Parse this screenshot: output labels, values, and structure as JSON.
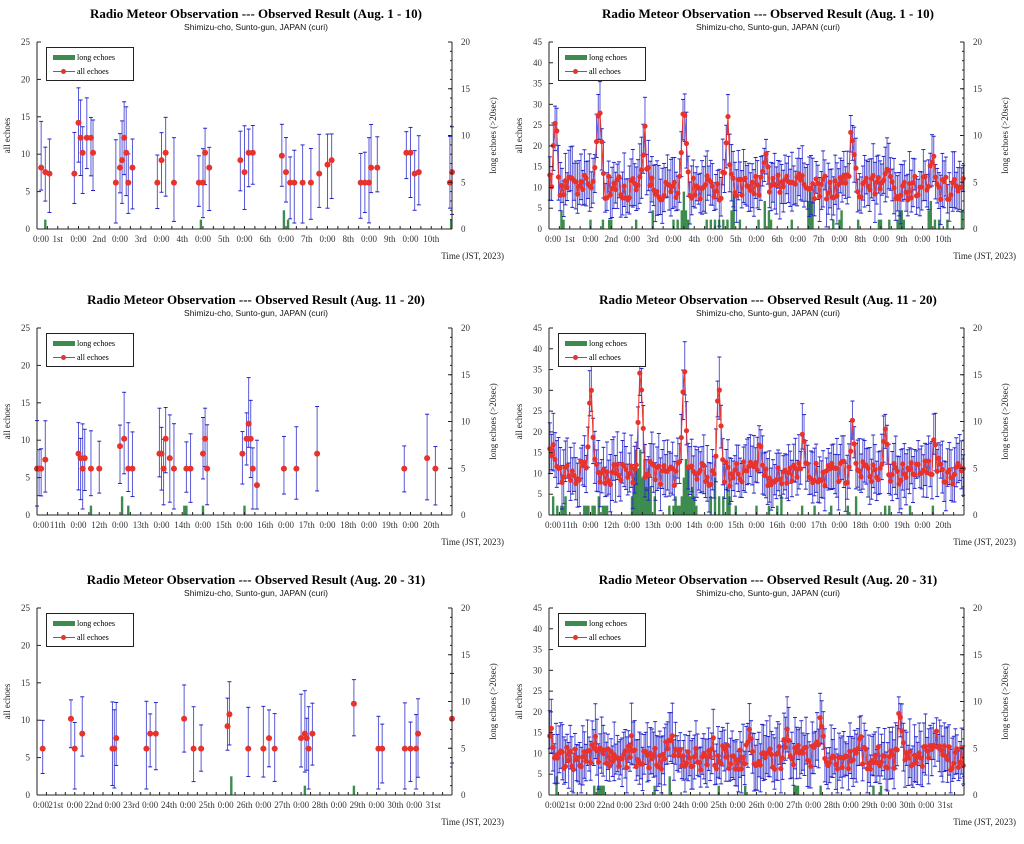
{
  "figure": {
    "subtitle": "Shimizu-cho, Sunto-gun, JAPAN (curi)",
    "legend": {
      "long": "long echoes",
      "all": "all echoes"
    },
    "ylabel_left": "all echoes",
    "ylabel_right": "long echoes (>20sec)",
    "xlabel": "Time (JST, 2023)"
  },
  "chart_data": [
    {
      "type": "line",
      "title": "Radio Meteor Observation --- Observed Result (Aug. 1 - 10)",
      "ylim": [
        0,
        25
      ],
      "yticks": [
        0,
        5,
        10,
        15,
        20,
        25
      ],
      "y2lim": [
        0,
        20
      ],
      "y2ticks": [
        0,
        5,
        10,
        15,
        20
      ],
      "xticks": [
        "0:00",
        "1st",
        "0:00",
        "2nd",
        "0:00",
        "3rd",
        "0:00",
        "4th",
        "0:00",
        "5th",
        "0:00",
        "6th",
        "0:00",
        "7th",
        "0:00",
        "8th",
        "0:00",
        "9th",
        "0:00",
        "10th"
      ],
      "days": 10,
      "mode": "sparse",
      "all_echoes": [
        [
          0.1,
          8.2
        ],
        [
          0.2,
          7.6
        ],
        [
          0.3,
          7.4
        ],
        [
          0.9,
          7.4
        ],
        [
          1.0,
          14.2
        ],
        [
          1.05,
          12.2
        ],
        [
          1.1,
          10.2
        ],
        [
          1.2,
          12.2
        ],
        [
          1.3,
          12.2
        ],
        [
          1.35,
          10.2
        ],
        [
          1.9,
          6.2
        ],
        [
          2.0,
          8.2
        ],
        [
          2.05,
          9.2
        ],
        [
          2.1,
          12.2
        ],
        [
          2.15,
          10.2
        ],
        [
          2.2,
          6.2
        ],
        [
          2.3,
          8.2
        ],
        [
          2.9,
          6.2
        ],
        [
          3.0,
          9.2
        ],
        [
          3.1,
          10.2
        ],
        [
          3.3,
          6.2
        ],
        [
          3.9,
          6.2
        ],
        [
          4.0,
          6.2
        ],
        [
          4.05,
          10.2
        ],
        [
          4.15,
          8.2
        ],
        [
          4.9,
          9.2
        ],
        [
          5.0,
          7.6
        ],
        [
          5.1,
          10.2
        ],
        [
          5.2,
          10.2
        ],
        [
          5.9,
          9.8
        ],
        [
          6.0,
          7.6
        ],
        [
          6.1,
          6.2
        ],
        [
          6.2,
          6.2
        ],
        [
          6.4,
          6.2
        ],
        [
          6.6,
          6.2
        ],
        [
          6.8,
          7.4
        ],
        [
          7.0,
          8.6
        ],
        [
          7.1,
          9.2
        ],
        [
          7.8,
          6.2
        ],
        [
          7.9,
          6.2
        ],
        [
          8.0,
          6.2
        ],
        [
          8.05,
          8.2
        ],
        [
          8.2,
          8.2
        ],
        [
          8.9,
          10.2
        ],
        [
          9.0,
          10.2
        ],
        [
          9.1,
          7.4
        ],
        [
          9.2,
          7.6
        ],
        [
          9.95,
          6.2
        ],
        [
          10.0,
          7.6
        ]
      ],
      "long_echoes": [
        [
          0.2,
          1
        ],
        [
          3.95,
          1
        ],
        [
          5.95,
          2
        ],
        [
          6.05,
          1
        ],
        [
          9.98,
          1
        ]
      ]
    },
    {
      "type": "line",
      "title": "Radio Meteor Observation --- Observed Result (Aug. 1 - 10)",
      "ylim": [
        0,
        45
      ],
      "yticks": [
        0,
        5,
        10,
        15,
        20,
        25,
        30,
        35,
        40,
        45
      ],
      "y2lim": [
        0,
        20
      ],
      "y2ticks": [
        0,
        5,
        10,
        15,
        20
      ],
      "xticks": [
        "0:00",
        "1st",
        "0:00",
        "2nd",
        "0:00",
        "3rd",
        "0:00",
        "4th",
        "0:00",
        "5th",
        "0:00",
        "6th",
        "0:00",
        "7th",
        "0:00",
        "8th",
        "0:00",
        "9th",
        "0:00",
        "10th"
      ],
      "days": 10,
      "mode": "dense",
      "peaks": [
        0.15,
        1.2,
        2.3,
        3.25,
        4.3,
        5.2,
        6.1,
        7.3,
        8.2,
        9.25
      ],
      "peak_values": [
        28,
        34,
        24,
        28,
        25,
        20,
        16,
        25,
        17,
        17
      ],
      "baseline": 10,
      "long_echoes": [
        [
          0.3,
          2
        ],
        [
          0.35,
          1
        ],
        [
          1.0,
          1
        ],
        [
          1.3,
          1
        ],
        [
          1.45,
          1
        ],
        [
          1.5,
          1
        ],
        [
          2.1,
          1
        ],
        [
          2.5,
          2
        ],
        [
          3.0,
          1
        ],
        [
          3.1,
          1
        ],
        [
          3.2,
          2
        ],
        [
          3.25,
          4
        ],
        [
          3.3,
          2
        ],
        [
          3.35,
          1
        ],
        [
          3.8,
          1
        ],
        [
          3.9,
          1
        ],
        [
          4.0,
          1
        ],
        [
          4.1,
          1
        ],
        [
          4.2,
          1
        ],
        [
          4.3,
          1
        ],
        [
          4.4,
          2
        ],
        [
          4.45,
          4
        ],
        [
          4.6,
          1
        ],
        [
          5.05,
          1
        ],
        [
          5.2,
          3
        ],
        [
          5.3,
          2
        ],
        [
          5.35,
          1
        ],
        [
          5.85,
          1
        ],
        [
          6.25,
          3
        ],
        [
          6.3,
          4
        ],
        [
          6.35,
          3
        ],
        [
          6.85,
          1
        ],
        [
          7.0,
          1
        ],
        [
          7.05,
          2
        ],
        [
          7.45,
          1
        ],
        [
          7.95,
          1
        ],
        [
          8.0,
          1
        ],
        [
          8.2,
          1
        ],
        [
          8.4,
          1
        ],
        [
          8.45,
          2
        ],
        [
          8.5,
          2
        ],
        [
          8.55,
          1
        ],
        [
          9.15,
          2
        ],
        [
          9.2,
          3
        ],
        [
          9.3,
          1
        ],
        [
          9.4,
          1
        ],
        [
          9.6,
          1
        ],
        [
          9.95,
          2
        ]
      ]
    },
    {
      "type": "line",
      "title": "Radio Meteor Observation --- Observed Result (Aug. 11 - 20)",
      "ylim": [
        0,
        25
      ],
      "yticks": [
        0,
        5,
        10,
        15,
        20,
        25
      ],
      "y2lim": [
        0,
        20
      ],
      "y2ticks": [
        0,
        5,
        10,
        15,
        20
      ],
      "xticks": [
        "0:00",
        "11th",
        "0:00",
        "12th",
        "0:00",
        "13th",
        "0:00",
        "14th",
        "0:00",
        "15th",
        "0:00",
        "16th",
        "0:00",
        "17th",
        "0:00",
        "18th",
        "0:00",
        "19th",
        "0:00",
        "20th"
      ],
      "days": 10,
      "mode": "sparse",
      "all_echoes": [
        [
          0.0,
          6.2
        ],
        [
          0.05,
          6.2
        ],
        [
          0.1,
          6.2
        ],
        [
          0.2,
          7.4
        ],
        [
          1.0,
          8.2
        ],
        [
          1.05,
          7.6
        ],
        [
          1.1,
          6.2
        ],
        [
          1.15,
          7.6
        ],
        [
          1.3,
          6.2
        ],
        [
          1.5,
          6.2
        ],
        [
          2.0,
          9.2
        ],
        [
          2.1,
          10.2
        ],
        [
          2.2,
          6.2
        ],
        [
          2.3,
          6.2
        ],
        [
          2.95,
          8.2
        ],
        [
          3.0,
          8.2
        ],
        [
          3.05,
          6.2
        ],
        [
          3.1,
          10.2
        ],
        [
          3.2,
          7.6
        ],
        [
          3.3,
          6.2
        ],
        [
          3.6,
          6.2
        ],
        [
          3.7,
          6.2
        ],
        [
          4.0,
          8.2
        ],
        [
          4.05,
          10.2
        ],
        [
          4.1,
          6.2
        ],
        [
          4.95,
          8.2
        ],
        [
          5.05,
          10.2
        ],
        [
          5.1,
          12.2
        ],
        [
          5.15,
          10.2
        ],
        [
          5.2,
          6.2
        ],
        [
          5.3,
          4.0
        ],
        [
          5.95,
          6.2
        ],
        [
          6.25,
          6.2
        ],
        [
          6.75,
          8.2
        ],
        [
          8.85,
          6.2
        ],
        [
          9.4,
          7.6
        ],
        [
          9.6,
          6.2
        ]
      ],
      "long_echoes": [
        [
          1.3,
          1
        ],
        [
          2.05,
          2
        ],
        [
          2.2,
          1
        ],
        [
          3.55,
          1
        ],
        [
          3.6,
          1
        ],
        [
          4.0,
          1
        ],
        [
          5.0,
          1
        ]
      ]
    },
    {
      "type": "line",
      "title": "Radio Meteor Observation --- Observed Result (Aug. 11 - 20)",
      "ylim": [
        0,
        45
      ],
      "yticks": [
        0,
        5,
        10,
        15,
        20,
        25,
        30,
        35,
        40,
        45
      ],
      "y2lim": [
        0,
        20
      ],
      "y2ticks": [
        0,
        5,
        10,
        15,
        20
      ],
      "xticks": [
        "0:00",
        "11th",
        "0:00",
        "12th",
        "0:00",
        "13th",
        "0:00",
        "14th",
        "0:00",
        "15th",
        "0:00",
        "16th",
        "0:00",
        "17th",
        "0:00",
        "18th",
        "0:00",
        "19th",
        "0:00",
        "20th"
      ],
      "days": 10,
      "mode": "dense",
      "peaks": [
        0.05,
        1.0,
        2.2,
        3.25,
        4.1,
        5.1,
        6.1,
        7.3,
        8.1,
        9.3
      ],
      "peak_values": [
        18,
        29,
        36,
        35,
        33,
        16,
        17,
        21,
        18,
        16
      ],
      "baseline": 10,
      "long_echoes": [
        [
          0.1,
          2
        ],
        [
          0.2,
          1
        ],
        [
          0.3,
          1
        ],
        [
          0.35,
          1
        ],
        [
          0.4,
          2
        ],
        [
          0.85,
          1
        ],
        [
          0.9,
          1
        ],
        [
          0.95,
          1
        ],
        [
          1.05,
          1
        ],
        [
          1.1,
          1
        ],
        [
          1.2,
          2
        ],
        [
          1.3,
          1
        ],
        [
          1.35,
          1
        ],
        [
          1.4,
          1
        ],
        [
          2.0,
          2
        ],
        [
          2.05,
          4
        ],
        [
          2.1,
          7
        ],
        [
          2.15,
          5
        ],
        [
          2.2,
          7
        ],
        [
          2.25,
          4
        ],
        [
          2.3,
          6
        ],
        [
          2.35,
          3
        ],
        [
          2.4,
          5
        ],
        [
          2.45,
          3
        ],
        [
          2.55,
          2
        ],
        [
          2.9,
          1
        ],
        [
          3.0,
          1
        ],
        [
          3.05,
          2
        ],
        [
          3.1,
          1
        ],
        [
          3.15,
          1
        ],
        [
          3.2,
          2
        ],
        [
          3.25,
          4
        ],
        [
          3.3,
          6
        ],
        [
          3.35,
          5
        ],
        [
          3.4,
          2
        ],
        [
          3.45,
          3
        ],
        [
          3.5,
          2
        ],
        [
          3.55,
          1
        ],
        [
          3.9,
          2
        ],
        [
          4.0,
          4
        ],
        [
          4.1,
          2
        ],
        [
          4.2,
          2
        ],
        [
          4.3,
          3
        ],
        [
          4.35,
          2
        ],
        [
          4.5,
          1
        ],
        [
          5.0,
          1
        ],
        [
          5.3,
          1
        ],
        [
          5.5,
          1
        ],
        [
          5.6,
          2
        ],
        [
          6.1,
          1
        ],
        [
          6.4,
          1
        ],
        [
          6.8,
          1
        ],
        [
          7.2,
          1
        ],
        [
          7.4,
          2
        ],
        [
          8.1,
          1
        ],
        [
          8.2,
          1
        ],
        [
          8.7,
          1
        ],
        [
          9.25,
          1
        ]
      ]
    },
    {
      "type": "line",
      "title": "Radio Meteor Observation --- Observed Result (Aug. 20 - 31)",
      "ylim": [
        0,
        25
      ],
      "yticks": [
        0,
        5,
        10,
        15,
        20,
        25
      ],
      "y2lim": [
        0,
        20
      ],
      "y2ticks": [
        0,
        5,
        10,
        15,
        20
      ],
      "xticks": [
        "0:00",
        "21st",
        "0:00",
        "22nd",
        "0:00",
        "23rd",
        "0:00",
        "24th",
        "0:00",
        "25th",
        "0:00",
        "26th",
        "0:00",
        "27th",
        "0:00",
        "28th",
        "0:00",
        "29th",
        "0:00",
        "30th",
        "0:00",
        "31st"
      ],
      "days": 11,
      "mode": "sparse",
      "all_echoes": [
        [
          0.15,
          6.2
        ],
        [
          0.9,
          10.2
        ],
        [
          1.0,
          6.2
        ],
        [
          1.2,
          8.2
        ],
        [
          2.0,
          6.2
        ],
        [
          2.05,
          6.2
        ],
        [
          2.1,
          7.6
        ],
        [
          2.9,
          6.2
        ],
        [
          3.0,
          8.2
        ],
        [
          3.15,
          8.2
        ],
        [
          3.9,
          10.2
        ],
        [
          4.15,
          6.2
        ],
        [
          4.35,
          6.2
        ],
        [
          5.05,
          9.2
        ],
        [
          5.1,
          10.8
        ],
        [
          5.6,
          6.2
        ],
        [
          6.0,
          6.2
        ],
        [
          6.15,
          7.6
        ],
        [
          6.3,
          6.2
        ],
        [
          7.0,
          7.6
        ],
        [
          7.1,
          8.2
        ],
        [
          7.15,
          7.6
        ],
        [
          7.2,
          6.2
        ],
        [
          7.3,
          8.2
        ],
        [
          8.4,
          12.2
        ],
        [
          9.05,
          6.2
        ],
        [
          9.15,
          6.2
        ],
        [
          9.75,
          6.2
        ],
        [
          9.9,
          6.2
        ],
        [
          10.05,
          6.2
        ],
        [
          10.1,
          8.2
        ],
        [
          11.0,
          10.2
        ]
      ],
      "long_echoes": [
        [
          5.15,
          2
        ],
        [
          7.1,
          1
        ],
        [
          8.4,
          1
        ]
      ]
    },
    {
      "type": "line",
      "title": "Radio Meteor Observation --- Observed Result (Aug. 20 - 31)",
      "ylim": [
        0,
        45
      ],
      "yticks": [
        0,
        5,
        10,
        15,
        20,
        25,
        30,
        35,
        40,
        45
      ],
      "y2lim": [
        0,
        20
      ],
      "y2ticks": [
        0,
        5,
        10,
        15,
        20
      ],
      "xticks": [
        "0:00",
        "21st",
        "0:00",
        "22nd",
        "0:00",
        "23rd",
        "0:00",
        "24th",
        "0:00",
        "25th",
        "0:00",
        "26th",
        "0:00",
        "27th",
        "0:00",
        "28th",
        "0:00",
        "29th",
        "0:00",
        "30th",
        "0:00",
        "31st"
      ],
      "days": 11,
      "mode": "dense",
      "peaks": [
        0.05,
        1.2,
        2.2,
        3.2,
        4.3,
        5.3,
        6.3,
        7.2,
        8.2,
        9.3,
        10.3
      ],
      "peak_values": [
        16,
        13,
        14,
        17,
        13,
        14,
        14,
        19,
        16,
        20,
        14
      ],
      "baseline": 9,
      "long_echoes": [
        [
          0.2,
          2
        ],
        [
          1.2,
          1
        ],
        [
          1.3,
          1
        ],
        [
          1.35,
          1
        ],
        [
          1.4,
          1
        ],
        [
          1.45,
          1
        ],
        [
          2.8,
          1
        ],
        [
          3.2,
          2
        ],
        [
          4.5,
          1
        ],
        [
          5.2,
          1
        ],
        [
          6.5,
          1
        ],
        [
          6.55,
          1
        ],
        [
          6.6,
          1
        ],
        [
          7.2,
          1
        ],
        [
          8.6,
          1
        ],
        [
          8.8,
          1
        ]
      ]
    }
  ]
}
